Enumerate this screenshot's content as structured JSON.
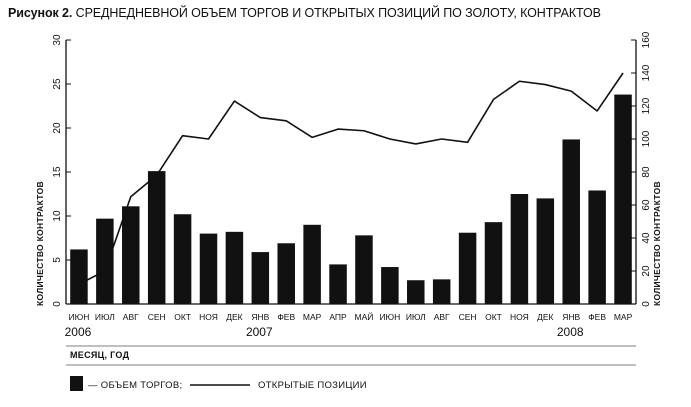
{
  "figure": {
    "label": "Рисунок 2.",
    "title": "СРЕДНЕДНЕВНОЙ ОБЪЕМ ТОРГОВ И ОТКРЫТЫХ ПОЗИЦИЙ ПО ЗОЛОТУ, КОНТРАКТОВ"
  },
  "chart_data": {
    "type": "bar",
    "title": "СРЕДНЕДНЕВНОЙ ОБЪЕМ ТОРГОВ И ОТКРЫТЫХ ПОЗИЦИЙ ПО ЗОЛОТУ, КОНТРАКТОВ",
    "categories": [
      "ИЮН",
      "ИЮЛ",
      "АВГ",
      "СЕН",
      "ОКТ",
      "НОЯ",
      "ДЕК",
      "ЯНВ",
      "ФЕВ",
      "МАР",
      "АПР",
      "МАЙ",
      "ИЮН",
      "ИЮЛ",
      "АВГ",
      "СЕН",
      "ОКТ",
      "НОЯ",
      "ДЕК",
      "ЯНВ",
      "ФЕВ",
      "МАР"
    ],
    "year_labels": [
      {
        "label": "2006",
        "category_index": 0
      },
      {
        "label": "2007",
        "category_index": 7
      },
      {
        "label": "2008",
        "category_index": 19
      }
    ],
    "xlabel": "МЕСЯЦ, ГОД",
    "ylabel_left": "КОЛИЧЕСТВО КОНТРАКТОВ",
    "ylabel_right": "КОЛИЧЕСТВО КОНТРАКТОВ",
    "ylim_left": [
      0,
      30
    ],
    "yticks_left": [
      0,
      5,
      10,
      15,
      20,
      25,
      30
    ],
    "ylim_right": [
      0,
      160
    ],
    "yticks_right": [
      0,
      20,
      40,
      60,
      80,
      100,
      120,
      140,
      160
    ],
    "grid": false,
    "legend_position": "bottom-left",
    "series": [
      {
        "name": "ОБЪЕМ ТОРГОВ;",
        "type": "bar",
        "axis": "left",
        "color": "#111111",
        "values": [
          6.2,
          9.7,
          11.1,
          15.1,
          10.2,
          8.0,
          8.2,
          5.9,
          6.9,
          9.0,
          4.5,
          7.8,
          4.2,
          2.7,
          2.8,
          8.1,
          9.3,
          12.5,
          12.0,
          18.7,
          12.9,
          23.8
        ]
      },
      {
        "name": "ОТКРЫТЫЕ ПОЗИЦИИ",
        "type": "line",
        "axis": "right",
        "color": "#111111",
        "values": [
          12,
          20,
          65,
          78,
          102,
          100,
          123,
          113,
          111,
          101,
          106,
          105,
          100,
          97,
          100,
          98,
          124,
          135,
          133,
          129,
          117,
          140
        ]
      }
    ]
  }
}
